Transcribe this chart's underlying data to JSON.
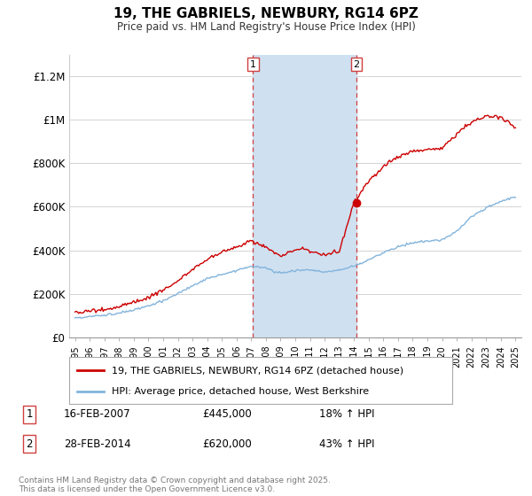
{
  "title": "19, THE GABRIELS, NEWBURY, RG14 6PZ",
  "subtitle": "Price paid vs. HM Land Registry's House Price Index (HPI)",
  "legend_label_red": "19, THE GABRIELS, NEWBURY, RG14 6PZ (detached house)",
  "legend_label_blue": "HPI: Average price, detached house, West Berkshire",
  "footnote": "Contains HM Land Registry data © Crown copyright and database right 2025.\nThis data is licensed under the Open Government Licence v3.0.",
  "transaction1_date": "16-FEB-2007",
  "transaction1_price": "£445,000",
  "transaction1_hpi": "18% ↑ HPI",
  "transaction2_date": "28-FEB-2014",
  "transaction2_price": "£620,000",
  "transaction2_hpi": "43% ↑ HPI",
  "red_color": "#cc0000",
  "blue_color": "#82b4dc",
  "shade_color": "#cfe0f0",
  "dashed_color": "#d04040",
  "ylim_min": 0,
  "ylim_max": 1300000,
  "yticks": [
    0,
    200000,
    400000,
    600000,
    800000,
    1000000,
    1200000
  ],
  "ytick_labels": [
    "£0",
    "£200K",
    "£400K",
    "£600K",
    "£800K",
    "£1M",
    "£1.2M"
  ],
  "transaction1_year": 2007.125,
  "transaction2_year": 2014.167,
  "transaction1_price_val": 445000,
  "transaction2_price_val": 620000,
  "hpi_base_years": [
    1995,
    1996,
    1997,
    1998,
    1999,
    2000,
    2001,
    2002,
    2003,
    2004,
    2005,
    2006,
    2007,
    2008,
    2009,
    2010,
    2011,
    2012,
    2013,
    2014,
    2015,
    2016,
    2017,
    2018,
    2019,
    2020,
    2021,
    2022,
    2023,
    2024,
    2025
  ],
  "hpi_base_vals": [
    90000,
    95000,
    102000,
    112000,
    124000,
    145000,
    168000,
    200000,
    238000,
    268000,
    288000,
    308000,
    328000,
    318000,
    295000,
    308000,
    310000,
    300000,
    308000,
    328000,
    355000,
    390000,
    415000,
    435000,
    442000,
    448000,
    488000,
    555000,
    595000,
    625000,
    645000
  ],
  "red_base_years": [
    1995,
    1996,
    1997,
    1998,
    1999,
    2000,
    2001,
    2002,
    2003,
    2004,
    2005,
    2006,
    2007,
    2007.2,
    2008,
    2009,
    2010,
    2010.5,
    2011,
    2012,
    2013,
    2014,
    2014.2,
    2015,
    2016,
    2017,
    2018,
    2019,
    2020,
    2021,
    2022,
    2023,
    2024,
    2024.5,
    2025
  ],
  "red_base_vals": [
    115000,
    120000,
    128000,
    142000,
    160000,
    185000,
    215000,
    260000,
    310000,
    360000,
    390000,
    415000,
    445000,
    438000,
    415000,
    375000,
    400000,
    408000,
    395000,
    380000,
    395000,
    620000,
    640000,
    720000,
    785000,
    830000,
    855000,
    862000,
    870000,
    935000,
    990000,
    1020000,
    1010000,
    990000,
    960000
  ]
}
